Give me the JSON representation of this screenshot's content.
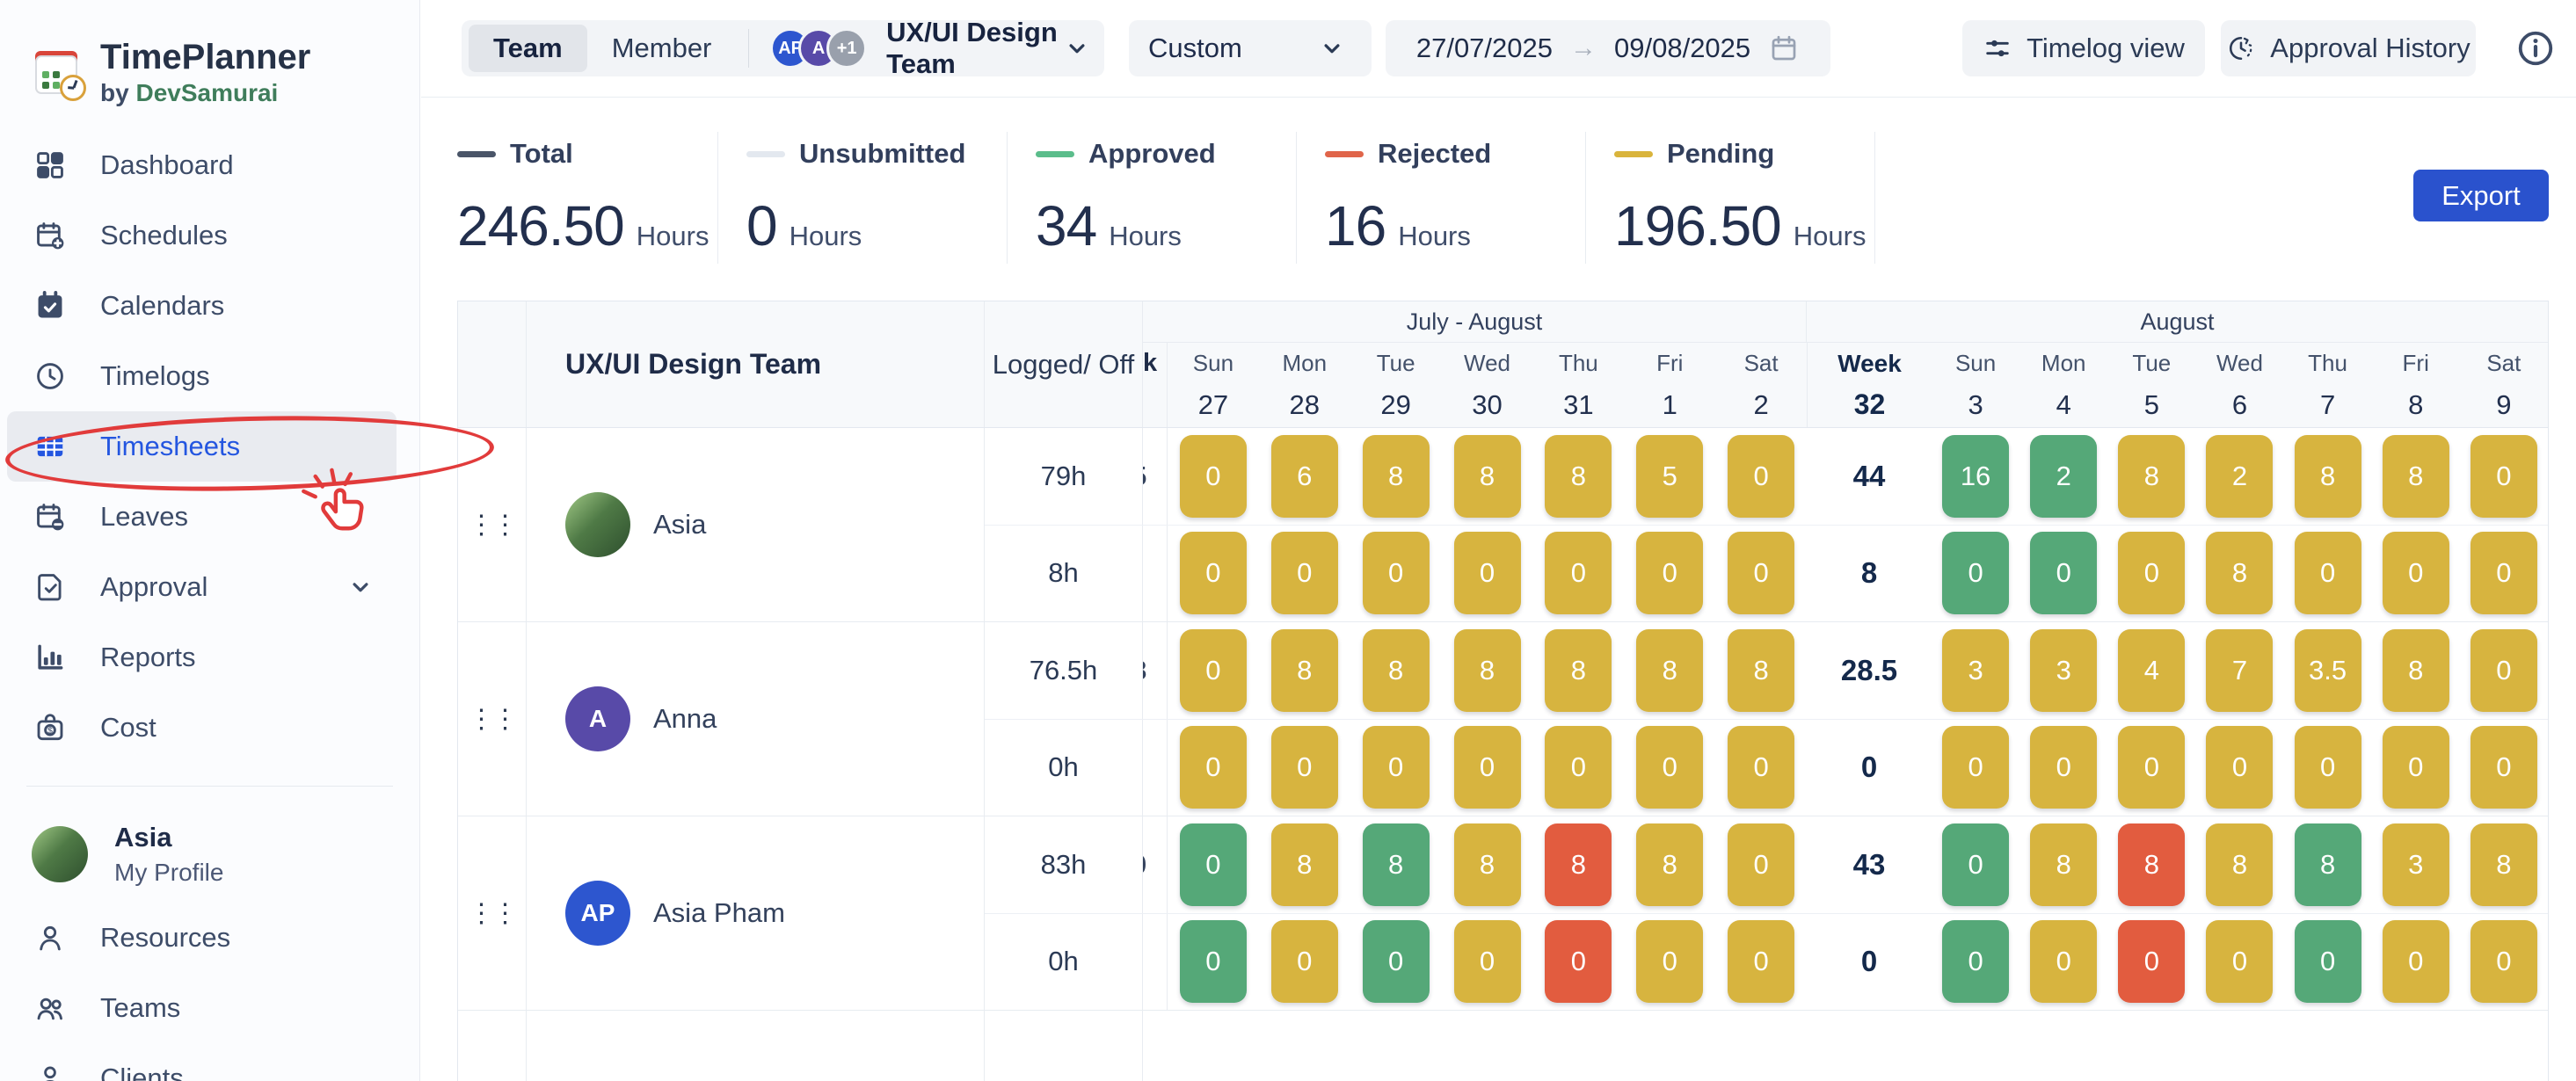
{
  "accent": {
    "primary_blue": "#2A52CD",
    "active_blue": "#2456E0",
    "annotation_red": "#E13B3B"
  },
  "app": {
    "name": "TimePlanner",
    "byline_prefix": "by",
    "byline_brand": "DevSamurai"
  },
  "sidebar": {
    "items": [
      {
        "label": "Dashboard",
        "icon": "grid"
      },
      {
        "label": "Schedules",
        "icon": "calendar-plus"
      },
      {
        "label": "Calendars",
        "icon": "calendar-check"
      },
      {
        "label": "Timelogs",
        "icon": "clock"
      },
      {
        "label": "Timesheets",
        "icon": "table",
        "active": true
      },
      {
        "label": "Leaves",
        "icon": "calendar-minus"
      },
      {
        "label": "Approval",
        "icon": "doc-check",
        "chevron": true
      },
      {
        "label": "Reports",
        "icon": "bar-chart"
      },
      {
        "label": "Cost",
        "icon": "cost"
      }
    ],
    "profile": {
      "name": "Asia",
      "subtitle": "My Profile"
    },
    "items_bottom": [
      {
        "label": "Resources",
        "icon": "person"
      },
      {
        "label": "Teams",
        "icon": "people"
      },
      {
        "label": "Clients",
        "icon": "client"
      }
    ]
  },
  "topbar": {
    "view_toggle": {
      "options": [
        "Team",
        "Member"
      ],
      "selected": "Team"
    },
    "team_selector": {
      "avatars": [
        {
          "text": "AP",
          "color": "#2D56CF"
        },
        {
          "text": "A",
          "color": "#584AA8"
        },
        {
          "text": "+1",
          "color": "#99A0AC"
        }
      ],
      "label": "UX/UI Design Team"
    },
    "range_preset": "Custom",
    "date_from": "27/07/2025",
    "date_to": "09/08/2025",
    "actions": [
      {
        "label": "Timelog view",
        "icon": "sliders"
      },
      {
        "label": "Approval History",
        "icon": "history"
      }
    ]
  },
  "stats": {
    "items": [
      {
        "label": "Total",
        "value": "246.50",
        "unit": "Hours",
        "color": "#4A5568"
      },
      {
        "label": "Unsubmitted",
        "value": "0",
        "unit": "Hours",
        "color": "#E3E8EF"
      },
      {
        "label": "Approved",
        "value": "34",
        "unit": "Hours",
        "color": "#5BBD8B"
      },
      {
        "label": "Rejected",
        "value": "16",
        "unit": "Hours",
        "color": "#E0654A"
      },
      {
        "label": "Pending",
        "value": "196.50",
        "unit": "Hours",
        "color": "#D9B43C"
      }
    ],
    "export_label": "Export"
  },
  "timesheet": {
    "team_title": "UX/UI Design Team",
    "logged_header": "Logged/ Off",
    "clipped_week_header": "k",
    "status_colors": {
      "a": "#55A878",
      "p": "#D7B43F",
      "r": "#E25C3F"
    },
    "groups": [
      {
        "label": "July - August"
      },
      {
        "label": "August"
      }
    ],
    "week_header": {
      "label": "Week",
      "number": "32"
    },
    "days_july": [
      {
        "dow": "Sun",
        "date": "27"
      },
      {
        "dow": "Mon",
        "date": "28"
      },
      {
        "dow": "Tue",
        "date": "29"
      },
      {
        "dow": "Wed",
        "date": "30"
      },
      {
        "dow": "Thu",
        "date": "31"
      },
      {
        "dow": "Fri",
        "date": "1"
      },
      {
        "dow": "Sat",
        "date": "2"
      }
    ],
    "days_august": [
      {
        "dow": "Sun",
        "date": "3"
      },
      {
        "dow": "Mon",
        "date": "4"
      },
      {
        "dow": "Tue",
        "date": "5"
      },
      {
        "dow": "Wed",
        "date": "6"
      },
      {
        "dow": "Thu",
        "date": "7"
      },
      {
        "dow": "Fri",
        "date": "8"
      },
      {
        "dow": "Sat",
        "date": "9"
      }
    ],
    "members": [
      {
        "name": "Asia",
        "avatar": {
          "kind": "photo",
          "label": "",
          "color": ""
        },
        "logged_total": "79h",
        "off_total": "8h",
        "week31_fragment": "5",
        "week32_logged": "44",
        "week32_off": "8",
        "cells_logged": [
          [
            "0",
            "p"
          ],
          [
            "6",
            "p"
          ],
          [
            "8",
            "p"
          ],
          [
            "8",
            "p"
          ],
          [
            "8",
            "p"
          ],
          [
            "5",
            "p"
          ],
          [
            "0",
            "p"
          ],
          [
            "16",
            "a"
          ],
          [
            "2",
            "a"
          ],
          [
            "8",
            "p"
          ],
          [
            "2",
            "p"
          ],
          [
            "8",
            "p"
          ],
          [
            "8",
            "p"
          ],
          [
            "0",
            "p"
          ]
        ],
        "cells_off": [
          [
            "0",
            "p"
          ],
          [
            "0",
            "p"
          ],
          [
            "0",
            "p"
          ],
          [
            "0",
            "p"
          ],
          [
            "0",
            "p"
          ],
          [
            "0",
            "p"
          ],
          [
            "0",
            "p"
          ],
          [
            "0",
            "a"
          ],
          [
            "0",
            "a"
          ],
          [
            "0",
            "p"
          ],
          [
            "8",
            "p"
          ],
          [
            "0",
            "p"
          ],
          [
            "0",
            "p"
          ],
          [
            "0",
            "p"
          ]
        ]
      },
      {
        "name": "Anna",
        "avatar": {
          "kind": "initials",
          "label": "A",
          "color": "#584AA8"
        },
        "logged_total": "76.5h",
        "off_total": "0h",
        "week31_fragment": "8",
        "week32_logged": "28.5",
        "week32_off": "0",
        "cells_logged": [
          [
            "0",
            "p"
          ],
          [
            "8",
            "p"
          ],
          [
            "8",
            "p"
          ],
          [
            "8",
            "p"
          ],
          [
            "8",
            "p"
          ],
          [
            "8",
            "p"
          ],
          [
            "8",
            "p"
          ],
          [
            "3",
            "p"
          ],
          [
            "3",
            "p"
          ],
          [
            "4",
            "p"
          ],
          [
            "7",
            "p"
          ],
          [
            "3.5",
            "p"
          ],
          [
            "8",
            "p"
          ],
          [
            "0",
            "p"
          ]
        ],
        "cells_off": [
          [
            "0",
            "p"
          ],
          [
            "0",
            "p"
          ],
          [
            "0",
            "p"
          ],
          [
            "0",
            "p"
          ],
          [
            "0",
            "p"
          ],
          [
            "0",
            "p"
          ],
          [
            "0",
            "p"
          ],
          [
            "0",
            "p"
          ],
          [
            "0",
            "p"
          ],
          [
            "0",
            "p"
          ],
          [
            "0",
            "p"
          ],
          [
            "0",
            "p"
          ],
          [
            "0",
            "p"
          ],
          [
            "0",
            "p"
          ]
        ]
      },
      {
        "name": "Asia Pham",
        "avatar": {
          "kind": "initials",
          "label": "AP",
          "color": "#2D56CF"
        },
        "logged_total": "83h",
        "off_total": "0h",
        "week31_fragment": "0",
        "week32_logged": "43",
        "week32_off": "0",
        "cells_logged": [
          [
            "0",
            "a"
          ],
          [
            "8",
            "p"
          ],
          [
            "8",
            "a"
          ],
          [
            "8",
            "p"
          ],
          [
            "8",
            "r"
          ],
          [
            "8",
            "p"
          ],
          [
            "0",
            "p"
          ],
          [
            "0",
            "a"
          ],
          [
            "8",
            "p"
          ],
          [
            "8",
            "r"
          ],
          [
            "8",
            "p"
          ],
          [
            "8",
            "a"
          ],
          [
            "3",
            "p"
          ],
          [
            "8",
            "p"
          ]
        ],
        "cells_off": [
          [
            "0",
            "a"
          ],
          [
            "0",
            "p"
          ],
          [
            "0",
            "a"
          ],
          [
            "0",
            "p"
          ],
          [
            "0",
            "r"
          ],
          [
            "0",
            "p"
          ],
          [
            "0",
            "p"
          ],
          [
            "0",
            "a"
          ],
          [
            "0",
            "p"
          ],
          [
            "0",
            "r"
          ],
          [
            "0",
            "p"
          ],
          [
            "0",
            "a"
          ],
          [
            "0",
            "p"
          ],
          [
            "0",
            "p"
          ]
        ]
      }
    ]
  }
}
